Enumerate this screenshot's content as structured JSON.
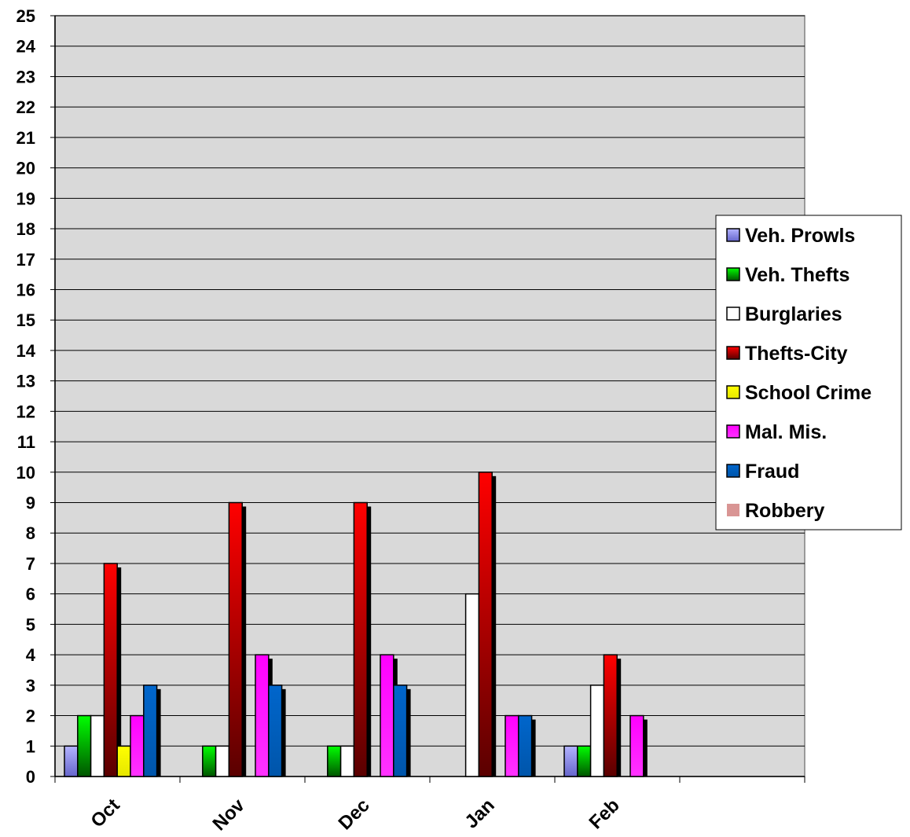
{
  "chart_data": {
    "type": "bar",
    "categories": [
      "Oct",
      "Nov",
      "Dec",
      "Jan",
      "Feb",
      ""
    ],
    "ylim": [
      0,
      25
    ],
    "yticks": [
      "0",
      "1",
      "2",
      "3",
      "4",
      "5",
      "6",
      "7",
      "8",
      "9",
      "10",
      "11",
      "12",
      "13",
      "14",
      "15",
      "16",
      "17",
      "18",
      "19",
      "20",
      "21",
      "22",
      "23",
      "24",
      "25"
    ],
    "grid": true,
    "legend_position": "right",
    "plot_background": "#d9d9d9",
    "series": [
      {
        "name": "Veh. Prowls",
        "color": "#9999ff",
        "values": [
          1,
          0,
          0,
          0,
          1,
          0
        ]
      },
      {
        "name": "Veh. Thefts",
        "color": "#00cc00",
        "values": [
          2,
          1,
          1,
          0,
          1,
          0
        ]
      },
      {
        "name": "Burglaries",
        "color": "#ffffff",
        "values": [
          2,
          1,
          1,
          6,
          3,
          0
        ]
      },
      {
        "name": "Thefts-City",
        "color": "#ff0000",
        "values": [
          7,
          9,
          9,
          10,
          4,
          0
        ]
      },
      {
        "name": "School Crime",
        "color": "#ffff00",
        "values": [
          1,
          0,
          0,
          0,
          0,
          0
        ]
      },
      {
        "name": "Mal. Mis.",
        "color": "#ff00ff",
        "values": [
          2,
          4,
          4,
          2,
          2,
          0
        ]
      },
      {
        "name": "Fraud",
        "color": "#0066cc",
        "values": [
          3,
          3,
          3,
          2,
          0,
          0
        ]
      },
      {
        "name": "Robbery",
        "color": "#d99594",
        "values": [
          0,
          0,
          0,
          0,
          0,
          0
        ]
      }
    ]
  }
}
